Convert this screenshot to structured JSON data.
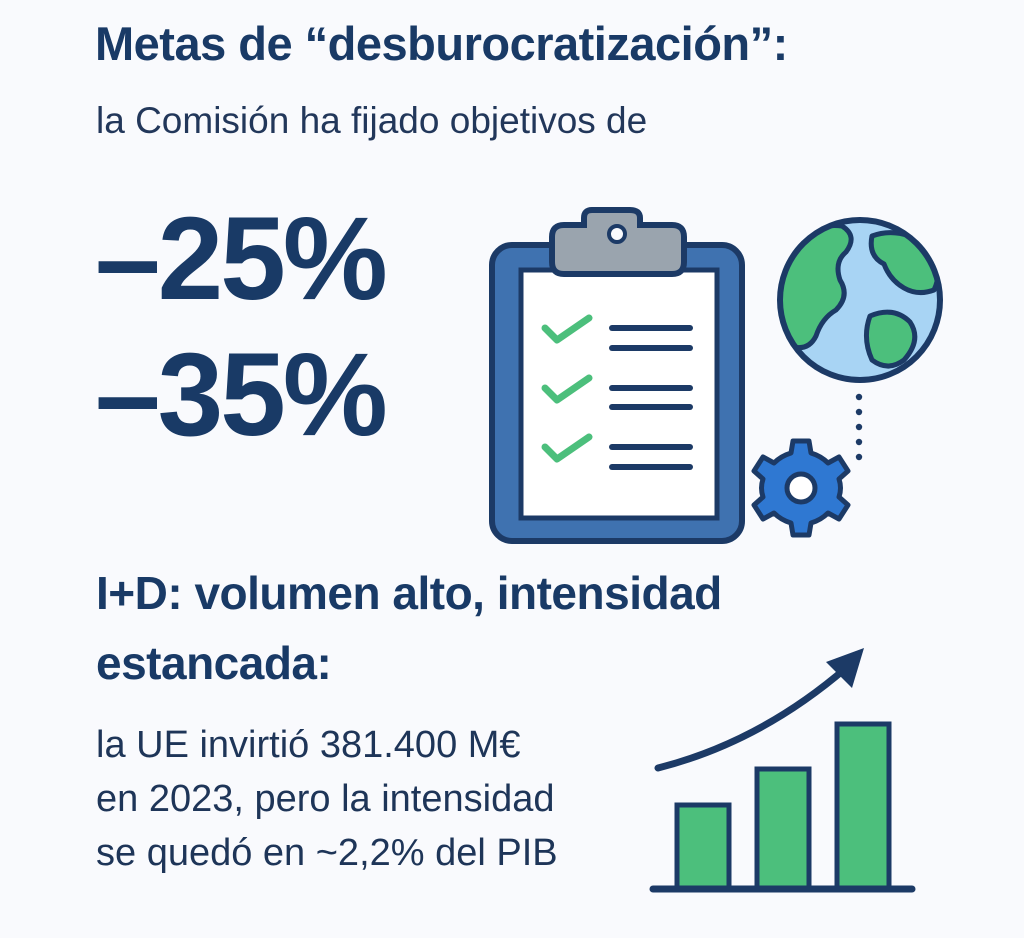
{
  "header": {
    "title": "Metas de “desburocratización”:",
    "subtitle": "la Comisión ha fijado objetivos de"
  },
  "targets": {
    "first": "–25%",
    "second": "–35%"
  },
  "research": {
    "heading_line1": "I+D: volumen alto, intensidad",
    "heading_line2": "estancada:",
    "body_line1": "la UE invirtió 381.400 M€",
    "body_line2": "en 2023, pero la intensidad",
    "body_line3": "se quedó en ~2,2% del PIB"
  },
  "icons": {
    "clipboard": "clipboard-checklist-icon",
    "globe": "globe-icon",
    "gear": "gear-icon",
    "chart": "rising-bar-chart-icon"
  },
  "colors": {
    "navy": "#193a66",
    "clipboard_blue": "#3f72b0",
    "green": "#4cbf7c",
    "light_blue": "#a8d4f4",
    "gear_blue": "#2f78d2",
    "clip_gray": "#9aa4ae"
  }
}
